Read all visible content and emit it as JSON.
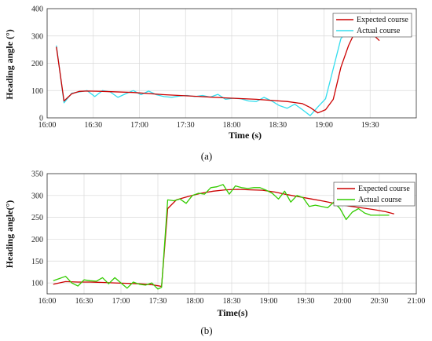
{
  "chart_data": [
    {
      "type": "line",
      "caption": "(a)",
      "xlabel": "Time (s)",
      "ylabel": "Heading angle (°)",
      "xticks": [
        "16:00",
        "16:30",
        "17:00",
        "17:30",
        "18:00",
        "18:30",
        "19:00",
        "19:30"
      ],
      "xticks_min": [
        960,
        990,
        1020,
        1050,
        1080,
        1110,
        1140,
        1170
      ],
      "xlim": [
        960,
        1200
      ],
      "ylim": [
        0,
        400
      ],
      "yticks": [
        0,
        100,
        200,
        300,
        400
      ],
      "grid": true,
      "legend_position": "top-right",
      "series": [
        {
          "name": "Expected course",
          "color": "#cc0000",
          "x": [
            966,
            971,
            976,
            981,
            986,
            996,
            1016,
            1036,
            1056,
            1076,
            1096,
            1116,
            1126,
            1131,
            1136,
            1141,
            1146,
            1151,
            1156,
            1161,
            1166,
            1171,
            1176
          ],
          "y": [
            260,
            62,
            88,
            97,
            98,
            97,
            93,
            85,
            79,
            73,
            68,
            60,
            52,
            38,
            18,
            30,
            68,
            185,
            265,
            325,
            330,
            310,
            283
          ]
        },
        {
          "name": "Actual course",
          "color": "#33ddee",
          "x": [
            966,
            971,
            976,
            981,
            986,
            991,
            996,
            1001,
            1006,
            1011,
            1016,
            1021,
            1026,
            1031,
            1036,
            1041,
            1046,
            1051,
            1056,
            1061,
            1066,
            1071,
            1076,
            1081,
            1086,
            1091,
            1096,
            1101,
            1106,
            1111,
            1116,
            1121,
            1126,
            1131,
            1136,
            1141,
            1146,
            1151,
            1156,
            1161,
            1166
          ],
          "y": [
            265,
            55,
            90,
            95,
            100,
            78,
            100,
            95,
            75,
            88,
            100,
            85,
            98,
            85,
            78,
            75,
            80,
            82,
            78,
            82,
            76,
            86,
            68,
            72,
            70,
            62,
            60,
            75,
            62,
            45,
            35,
            50,
            30,
            8,
            40,
            70,
            180,
            290,
            325,
            330,
            340
          ]
        }
      ]
    },
    {
      "type": "line",
      "caption": "(b)",
      "xlabel": "Time(s)",
      "ylabel": "Heading angle(°)",
      "xticks": [
        "16:00",
        "16:30",
        "17:00",
        "17:30",
        "18:00",
        "18:30",
        "19:00",
        "19:30",
        "20:00",
        "20:30",
        "21:00"
      ],
      "xticks_min": [
        960,
        990,
        1020,
        1050,
        1080,
        1110,
        1140,
        1170,
        1200,
        1230,
        1260
      ],
      "xlim": [
        960,
        1260
      ],
      "ylim": [
        75,
        350
      ],
      "yticks": [
        100,
        150,
        200,
        250,
        300,
        350
      ],
      "grid": true,
      "legend_position": "top-right",
      "series": [
        {
          "name": "Expected course",
          "color": "#cc0000",
          "x": [
            965,
            975,
            985,
            995,
            1005,
            1015,
            1025,
            1035,
            1045,
            1053,
            1058,
            1065,
            1075,
            1085,
            1095,
            1105,
            1115,
            1125,
            1135,
            1145,
            1155,
            1165,
            1175,
            1185,
            1195,
            1205,
            1215,
            1225,
            1235,
            1242
          ],
          "y": [
            97,
            103,
            102,
            102,
            101,
            100,
            99,
            98,
            96,
            92,
            270,
            290,
            298,
            305,
            310,
            313,
            314,
            313,
            312,
            308,
            302,
            297,
            292,
            287,
            281,
            276,
            272,
            268,
            263,
            258
          ]
        },
        {
          "name": "Actual course",
          "color": "#33cc00",
          "x": [
            965,
            970,
            975,
            980,
            985,
            990,
            995,
            1000,
            1005,
            1010,
            1015,
            1020,
            1025,
            1030,
            1035,
            1040,
            1045,
            1050,
            1053,
            1058,
            1063,
            1068,
            1073,
            1078,
            1083,
            1088,
            1093,
            1098,
            1103,
            1108,
            1113,
            1118,
            1123,
            1128,
            1133,
            1138,
            1143,
            1148,
            1153,
            1158,
            1163,
            1168,
            1173,
            1178,
            1183,
            1188,
            1193,
            1198,
            1203,
            1208,
            1213,
            1218,
            1223,
            1228,
            1233,
            1238
          ],
          "y": [
            105,
            110,
            115,
            100,
            93,
            107,
            105,
            104,
            112,
            98,
            112,
            100,
            88,
            102,
            97,
            95,
            100,
            86,
            90,
            290,
            288,
            292,
            282,
            300,
            305,
            303,
            318,
            320,
            325,
            303,
            322,
            318,
            316,
            318,
            318,
            312,
            305,
            292,
            310,
            285,
            300,
            295,
            275,
            278,
            275,
            272,
            285,
            270,
            245,
            262,
            270,
            260,
            255,
            255,
            255,
            255
          ]
        }
      ]
    }
  ]
}
